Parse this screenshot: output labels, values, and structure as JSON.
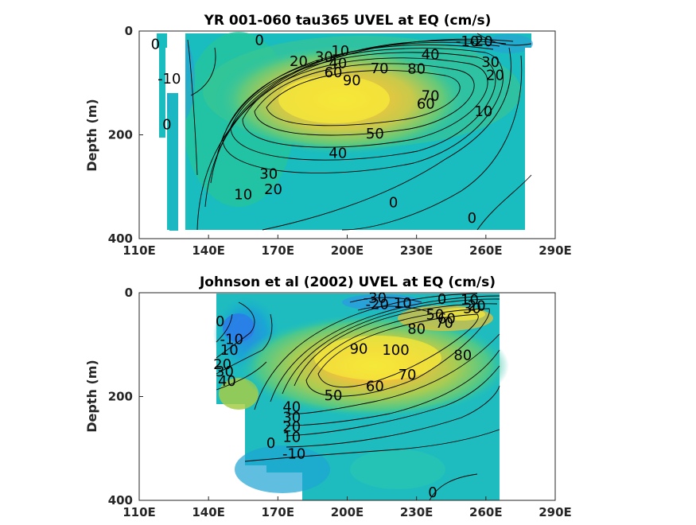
{
  "colors": {
    "negative_strong": "#2b8de0",
    "negative": "#19a8cf",
    "zero": "#16bfbf",
    "low": "#3ac79a",
    "mid": "#8fcf5a",
    "high": "#e8b93a",
    "peak": "#f5e83a",
    "contour_line": "#000000"
  },
  "chart_data": [
    {
      "type": "contour",
      "title": "YR 001-060 tau365 UVEL at EQ (cm/s)",
      "xlabel": "",
      "ylabel": "Depth (m)",
      "x_ticks": [
        "110E",
        "140E",
        "170E",
        "200E",
        "230E",
        "260E",
        "290E"
      ],
      "x_tick_values": [
        110,
        140,
        170,
        200,
        230,
        260,
        290
      ],
      "y_ticks": [
        "0",
        "200",
        "400"
      ],
      "y_tick_values": [
        0,
        200,
        400
      ],
      "xlim": [
        110,
        290
      ],
      "ylim": [
        400,
        0
      ],
      "core": {
        "lon": 215,
        "depth": 110,
        "max_speed": 90
      },
      "contour_labels": [
        {
          "text": "-10",
          "lon": 252,
          "depth": 20
        },
        {
          "text": "-20",
          "lon": 258,
          "depth": 20
        },
        {
          "text": "0",
          "lon": 117,
          "depth": 25
        },
        {
          "text": "0",
          "lon": 162,
          "depth": 18
        },
        {
          "text": "10",
          "lon": 197,
          "depth": 38
        },
        {
          "text": "20",
          "lon": 179,
          "depth": 58
        },
        {
          "text": "30",
          "lon": 190,
          "depth": 50
        },
        {
          "text": "40",
          "lon": 196,
          "depth": 62
        },
        {
          "text": "40",
          "lon": 236,
          "depth": 45
        },
        {
          "text": "60",
          "lon": 194,
          "depth": 80
        },
        {
          "text": "70",
          "lon": 214,
          "depth": 72
        },
        {
          "text": "80",
          "lon": 230,
          "depth": 73
        },
        {
          "text": "90",
          "lon": 202,
          "depth": 95
        },
        {
          "text": "-10",
          "lon": 123,
          "depth": 92
        },
        {
          "text": "70",
          "lon": 236,
          "depth": 125
        },
        {
          "text": "60",
          "lon": 234,
          "depth": 140
        },
        {
          "text": "30",
          "lon": 262,
          "depth": 60
        },
        {
          "text": "20",
          "lon": 264,
          "depth": 85
        },
        {
          "text": "10",
          "lon": 259,
          "depth": 155
        },
        {
          "text": "0",
          "lon": 122,
          "depth": 180
        },
        {
          "text": "50",
          "lon": 212,
          "depth": 198
        },
        {
          "text": "40",
          "lon": 196,
          "depth": 235
        },
        {
          "text": "30",
          "lon": 166,
          "depth": 275
        },
        {
          "text": "20",
          "lon": 168,
          "depth": 305
        },
        {
          "text": "10",
          "lon": 155,
          "depth": 315
        },
        {
          "text": "0",
          "lon": 220,
          "depth": 330
        },
        {
          "text": "0",
          "lon": 254,
          "depth": 360
        }
      ]
    },
    {
      "type": "contour",
      "title": "Johnson et al (2002) UVEL at EQ (cm/s)",
      "xlabel": "",
      "ylabel": "Depth (m)",
      "x_ticks": [
        "110E",
        "140E",
        "170E",
        "200E",
        "230E",
        "260E",
        "290E"
      ],
      "x_tick_values": [
        110,
        140,
        170,
        200,
        230,
        260,
        290
      ],
      "y_ticks": [
        "0",
        "200",
        "400"
      ],
      "y_tick_values": [
        0,
        200,
        400
      ],
      "xlim": [
        110,
        290
      ],
      "ylim": [
        400,
        0
      ],
      "core": {
        "lon": 220,
        "depth": 110,
        "max_speed": 100
      },
      "contour_labels": [
        {
          "text": "-30",
          "lon": 212,
          "depth": 10
        },
        {
          "text": "-20",
          "lon": 213,
          "depth": 22
        },
        {
          "text": "10",
          "lon": 224,
          "depth": 20
        },
        {
          "text": "0",
          "lon": 241,
          "depth": 12
        },
        {
          "text": "10",
          "lon": 253,
          "depth": 14
        },
        {
          "text": "20",
          "lon": 256,
          "depth": 25
        },
        {
          "text": "30",
          "lon": 254,
          "depth": 30
        },
        {
          "text": "50",
          "lon": 238,
          "depth": 42
        },
        {
          "text": "60",
          "lon": 243,
          "depth": 50
        },
        {
          "text": "70",
          "lon": 242,
          "depth": 58
        },
        {
          "text": "80",
          "lon": 230,
          "depth": 70
        },
        {
          "text": "0",
          "lon": 145,
          "depth": 55
        },
        {
          "text": "-10",
          "lon": 150,
          "depth": 90
        },
        {
          "text": "10",
          "lon": 149,
          "depth": 110
        },
        {
          "text": "20",
          "lon": 146,
          "depth": 138
        },
        {
          "text": "30",
          "lon": 147,
          "depth": 152
        },
        {
          "text": "40",
          "lon": 148,
          "depth": 170
        },
        {
          "text": "90",
          "lon": 205,
          "depth": 108
        },
        {
          "text": "100",
          "lon": 221,
          "depth": 110
        },
        {
          "text": "80",
          "lon": 250,
          "depth": 120
        },
        {
          "text": "70",
          "lon": 226,
          "depth": 158
        },
        {
          "text": "60",
          "lon": 212,
          "depth": 180
        },
        {
          "text": "50",
          "lon": 194,
          "depth": 198
        },
        {
          "text": "40",
          "lon": 176,
          "depth": 220
        },
        {
          "text": "30",
          "lon": 176,
          "depth": 240
        },
        {
          "text": "20",
          "lon": 176,
          "depth": 258
        },
        {
          "text": "10",
          "lon": 176,
          "depth": 278
        },
        {
          "text": "0",
          "lon": 167,
          "depth": 290
        },
        {
          "text": "-10",
          "lon": 177,
          "depth": 310
        },
        {
          "text": "0",
          "lon": 237,
          "depth": 385
        }
      ]
    }
  ]
}
